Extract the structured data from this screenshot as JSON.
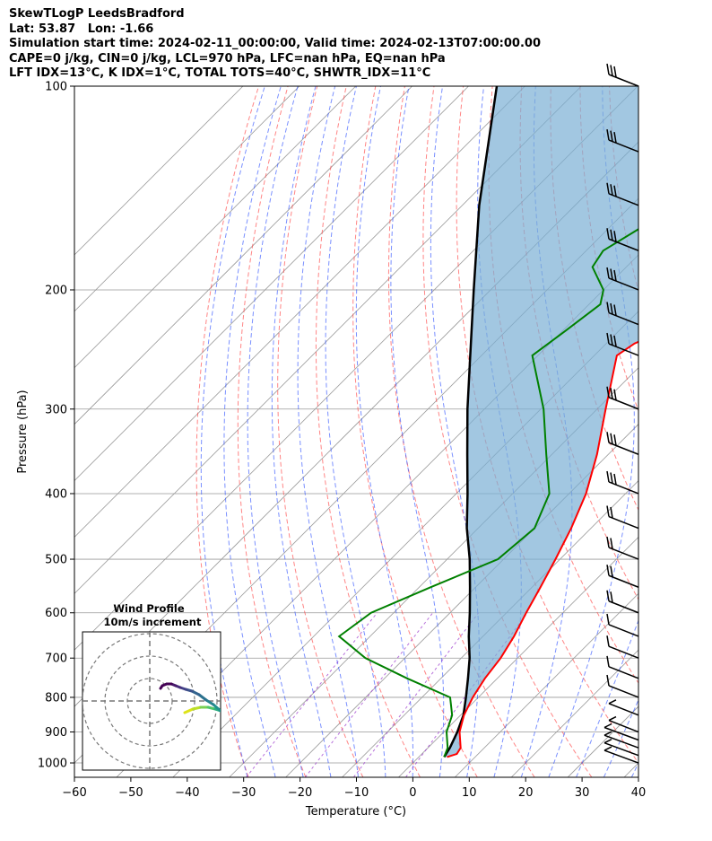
{
  "header": {
    "line1": "SkewTLogP LeedsBradford",
    "line2": "Lat: 53.87   Lon: -1.66",
    "line3": "Simulation start time: 2024-02-11_00:00:00, Valid time: 2024-02-13T07:00:00.00",
    "line4": "CAPE=0 j/kg, CIN=0 j/kg, LCL=970 hPa, LFC=nan hPa, EQ=nan hPa",
    "line5": "LFT IDX=13°C, K IDX=1°C, TOTAL TOTS=40°C, SHWTR_IDX=11°C"
  },
  "inset": {
    "title": "Wind Profile",
    "subtitle": "10m/s increment"
  },
  "chart_data": {
    "type": "line",
    "xlabel": "Temperature (°C)",
    "ylabel": "Pressure (hPa)",
    "xlim": [
      -60,
      40
    ],
    "ylim": [
      1050,
      100
    ],
    "y_scale": "log",
    "skew": true,
    "grid": true,
    "x_ticks": [
      -60,
      -50,
      -40,
      -30,
      -20,
      -10,
      0,
      10,
      20,
      30,
      40
    ],
    "y_ticks": [
      1000,
      900,
      800,
      700,
      600,
      500,
      400,
      300,
      200,
      100
    ],
    "colors": {
      "temperature": "#ff0000",
      "dewpoint": "#008000",
      "parcel": "#000000",
      "cin_fill": "#7bafd4",
      "dry_adiabats": "#ff4444",
      "moist_adiabats": "#3355ff",
      "mixing_ratio": "#9933cc",
      "isotherms": "#999999"
    },
    "series": [
      {
        "p": [
          980,
          970,
          950,
          900,
          850,
          800,
          750,
          700,
          650,
          600,
          550,
          500,
          450,
          400,
          350,
          300,
          250,
          240,
          230,
          220,
          200,
          180,
          160,
          150,
          140,
          130,
          120,
          110,
          100
        ],
        "values": [
          5.0,
          6.2,
          5.8,
          2.8,
          0.6,
          -1.0,
          -2.2,
          -3.0,
          -4.5,
          -6.5,
          -8.5,
          -10.8,
          -13.5,
          -17.0,
          -22.0,
          -28.5,
          -36.0,
          -35.0,
          -32.0,
          -29.0,
          -23.0,
          -16.0,
          -11.0,
          -9.5,
          -8.0,
          -7.5,
          -7.0,
          -7.0,
          -7.0
        ]
      },
      {
        "p": [
          980,
          950,
          900,
          850,
          800,
          750,
          700,
          650,
          600,
          550,
          500,
          450,
          400,
          350,
          300,
          250,
          230,
          210,
          200,
          185,
          175,
          160,
          150,
          100
        ],
        "values": [
          4.5,
          3.5,
          0.5,
          -1.5,
          -5.0,
          -16.0,
          -27.0,
          -35.5,
          -34.0,
          -28.0,
          -21.0,
          -20.0,
          -23.5,
          -31.0,
          -39.5,
          -51.0,
          -49.5,
          -48.0,
          -50.0,
          -56.0,
          -57.0,
          -54.0,
          -52.0,
          -38.0
        ]
      },
      {
        "p": [
          980,
          950,
          900,
          850,
          800,
          750,
          700,
          650,
          600,
          550,
          500,
          450,
          400,
          350,
          300,
          250,
          200,
          150,
          100
        ],
        "values": [
          4.5,
          3.9,
          2.4,
          0.5,
          -2.2,
          -5.2,
          -8.5,
          -12.5,
          -16.5,
          -21.0,
          -26.0,
          -32.0,
          -38.0,
          -45.0,
          -53.0,
          -62.0,
          -73.0,
          -87.0,
          -105.0
        ]
      }
    ],
    "wind_barbs_levels_hPa": [
      1000,
      975,
      950,
      925,
      900,
      850,
      800,
      750,
      700,
      650,
      600,
      550,
      500,
      450,
      400,
      350,
      300,
      250,
      225,
      200,
      175,
      150,
      125,
      100
    ]
  }
}
